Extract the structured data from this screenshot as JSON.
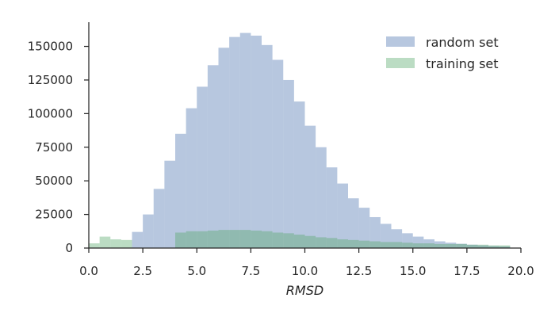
{
  "chart_data": {
    "type": "bar",
    "xlabel": "RMSD",
    "ylabel": "",
    "xlim": [
      0,
      20
    ],
    "ylim": [
      0,
      168000
    ],
    "x_ticks": [
      {
        "value": 0,
        "label": "0.0"
      },
      {
        "value": 2.5,
        "label": "2.5"
      },
      {
        "value": 5,
        "label": "5.0"
      },
      {
        "value": 7.5,
        "label": "7.5"
      },
      {
        "value": 10,
        "label": "10.0"
      },
      {
        "value": 12.5,
        "label": "12.5"
      },
      {
        "value": 15,
        "label": "15.0"
      },
      {
        "value": 17.5,
        "label": "17.5"
      },
      {
        "value": 20,
        "label": "20.0"
      }
    ],
    "y_ticks": [
      {
        "value": 0,
        "label": "0"
      },
      {
        "value": 25000,
        "label": "25000"
      },
      {
        "value": 50000,
        "label": "50000"
      },
      {
        "value": 75000,
        "label": "75000"
      },
      {
        "value": 100000,
        "label": "100000"
      },
      {
        "value": 125000,
        "label": "125000"
      },
      {
        "value": 150000,
        "label": "150000"
      }
    ],
    "grid": false,
    "legend_position": "top-right",
    "series": [
      {
        "name": "random set",
        "color": "#4c72b0",
        "opacity": 0.4,
        "bin_start": 2.0,
        "bin_width": 0.5,
        "values": [
          12000,
          25000,
          44000,
          65000,
          85000,
          104000,
          120000,
          136000,
          149000,
          157000,
          160000,
          158000,
          151000,
          140000,
          125000,
          109000,
          91000,
          75000,
          60000,
          48000,
          37000,
          30000,
          23000,
          18000,
          14000,
          11000,
          8500,
          6500,
          5000,
          4000,
          3200,
          2500,
          2000,
          1500,
          1200
        ]
      },
      {
        "name": "training set",
        "color": "#55a868",
        "opacity": 0.4,
        "bin_start": 0.0,
        "bin_width": 0.5,
        "values": [
          3500,
          8500,
          6500,
          6000,
          0,
          0,
          0,
          0,
          11500,
          12500,
          12500,
          13000,
          13500,
          13500,
          13500,
          13000,
          12500,
          11500,
          11000,
          10000,
          9000,
          8000,
          7500,
          6500,
          6000,
          5500,
          5000,
          4500,
          4500,
          4000,
          3500,
          3500,
          3000,
          3000,
          3000,
          2500,
          2500,
          2000,
          2000
        ]
      }
    ]
  }
}
